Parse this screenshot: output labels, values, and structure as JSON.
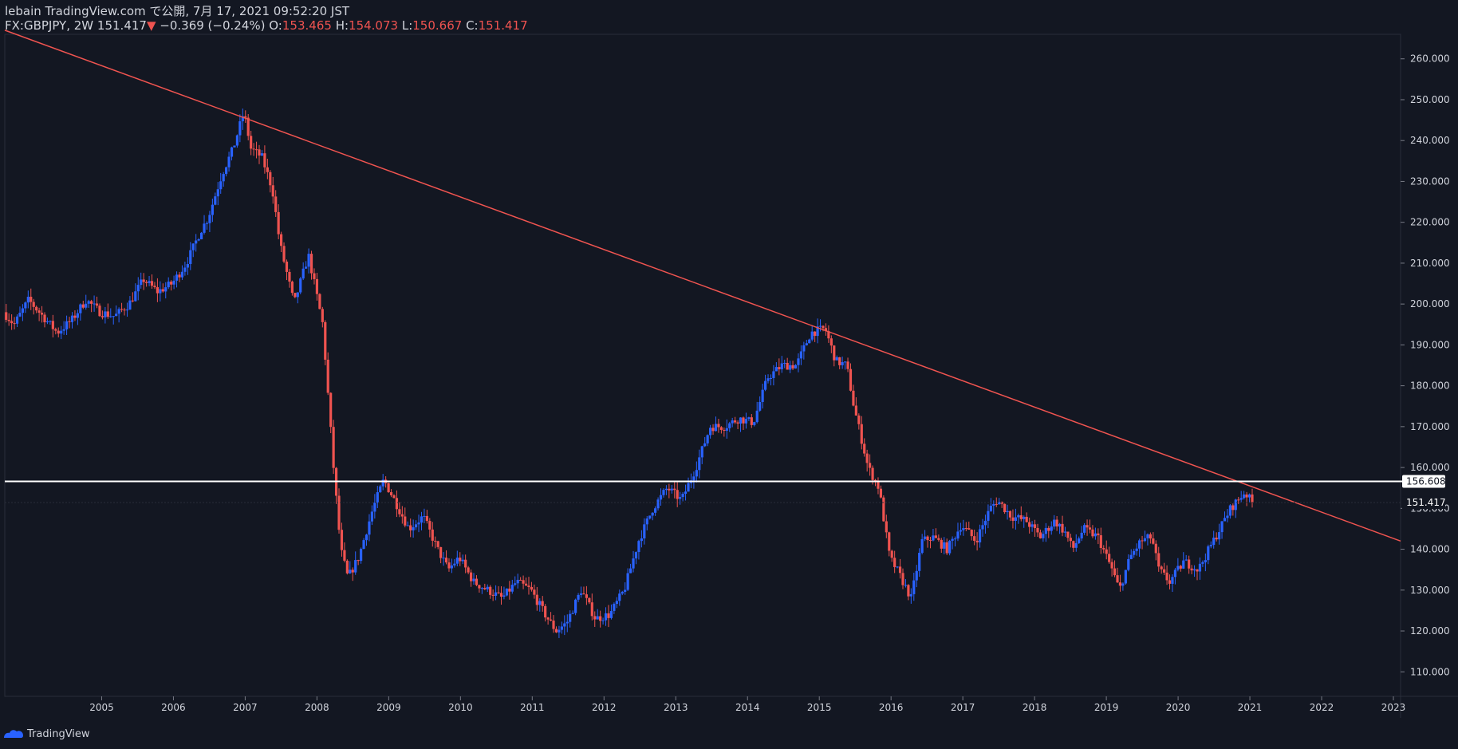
{
  "header": {
    "publish_line": "lebain TradingView.com で公開, 7月 17, 2021 09:52:20 JST",
    "symbol": "FX:GBPJPY, 2W",
    "last": "151.417",
    "change": "−0.369 (−0.24%)",
    "o_label": "O:",
    "o_value": "153.465",
    "h_label": "H:",
    "h_value": "154.073",
    "l_label": "L:",
    "l_value": "150.667",
    "c_label": "C:",
    "c_value": "151.417"
  },
  "footer": {
    "brand": "TradingView"
  },
  "colors": {
    "background": "#131722",
    "up": "#2962ff",
    "down": "#ef5350",
    "grid": "#2a2e39",
    "trendline": "#f05450",
    "hline": "#ffffff"
  },
  "chart_data": {
    "type": "candlestick",
    "x_tick_labels": [
      "2005",
      "2006",
      "2007",
      "2008",
      "2009",
      "2010",
      "2011",
      "2012",
      "2013",
      "2014",
      "2015",
      "2016",
      "2017",
      "2018",
      "2019",
      "2020",
      "2021",
      "2022",
      "2023"
    ],
    "y_tick_labels": [
      "110.000",
      "120.000",
      "130.000",
      "140.000",
      "150.000",
      "160.000",
      "170.000",
      "180.000",
      "190.000",
      "200.000",
      "210.000",
      "220.000",
      "230.000",
      "240.000",
      "250.000",
      "260.000"
    ],
    "ylim": [
      104,
      266
    ],
    "xlim": [
      2004.15,
      2023.6
    ],
    "grid": false,
    "current_price_label": "151.417",
    "current_price": 151.417,
    "horizontal_line": {
      "value": 156.608,
      "label": "156.608"
    },
    "trendline": {
      "x1": 2004.15,
      "y1": 267,
      "x2": 2023.6,
      "y2": 142
    },
    "price_path": [
      [
        2004.15,
        198
      ],
      [
        2004.3,
        195
      ],
      [
        2004.5,
        201
      ],
      [
        2004.7,
        197
      ],
      [
        2004.9,
        193
      ],
      [
        2005.1,
        196
      ],
      [
        2005.3,
        201
      ],
      [
        2005.5,
        198
      ],
      [
        2005.7,
        197
      ],
      [
        2005.9,
        200
      ],
      [
        2006.1,
        206
      ],
      [
        2006.3,
        203
      ],
      [
        2006.5,
        205
      ],
      [
        2006.7,
        210
      ],
      [
        2006.9,
        218
      ],
      [
        2007.0,
        221
      ],
      [
        2007.2,
        232
      ],
      [
        2007.35,
        238
      ],
      [
        2007.5,
        247
      ],
      [
        2007.6,
        238
      ],
      [
        2007.75,
        236
      ],
      [
        2007.9,
        228
      ],
      [
        2008.0,
        215
      ],
      [
        2008.2,
        200
      ],
      [
        2008.4,
        212
      ],
      [
        2008.6,
        195
      ],
      [
        2008.75,
        160
      ],
      [
        2008.85,
        140
      ],
      [
        2008.95,
        133
      ],
      [
        2009.1,
        138
      ],
      [
        2009.3,
        150
      ],
      [
        2009.45,
        157
      ],
      [
        2009.6,
        152
      ],
      [
        2009.8,
        145
      ],
      [
        2010.0,
        148
      ],
      [
        2010.2,
        140
      ],
      [
        2010.35,
        135
      ],
      [
        2010.5,
        138
      ],
      [
        2010.7,
        132
      ],
      [
        2010.9,
        130
      ],
      [
        2011.1,
        128
      ],
      [
        2011.3,
        132
      ],
      [
        2011.5,
        130
      ],
      [
        2011.7,
        124
      ],
      [
        2011.85,
        120
      ],
      [
        2012.0,
        122
      ],
      [
        2012.2,
        130
      ],
      [
        2012.4,
        123
      ],
      [
        2012.6,
        124
      ],
      [
        2012.8,
        130
      ],
      [
        2013.0,
        142
      ],
      [
        2013.2,
        150
      ],
      [
        2013.4,
        155
      ],
      [
        2013.6,
        152
      ],
      [
        2013.8,
        160
      ],
      [
        2014.0,
        170
      ],
      [
        2014.2,
        170
      ],
      [
        2014.4,
        172
      ],
      [
        2014.6,
        171
      ],
      [
        2014.8,
        182
      ],
      [
        2015.0,
        185
      ],
      [
        2015.2,
        185
      ],
      [
        2015.4,
        193
      ],
      [
        2015.6,
        194
      ],
      [
        2015.75,
        186
      ],
      [
        2015.9,
        185
      ],
      [
        2016.0,
        175
      ],
      [
        2016.2,
        160
      ],
      [
        2016.35,
        155
      ],
      [
        2016.5,
        138
      ],
      [
        2016.6,
        135
      ],
      [
        2016.8,
        128
      ],
      [
        2016.95,
        142
      ],
      [
        2017.1,
        143
      ],
      [
        2017.3,
        140
      ],
      [
        2017.5,
        146
      ],
      [
        2017.7,
        142
      ],
      [
        2017.9,
        150
      ],
      [
        2018.0,
        152
      ],
      [
        2018.2,
        148
      ],
      [
        2018.4,
        147
      ],
      [
        2018.6,
        143
      ],
      [
        2018.8,
        147
      ],
      [
        2018.95,
        144
      ],
      [
        2019.05,
        140
      ],
      [
        2019.2,
        145
      ],
      [
        2019.4,
        143
      ],
      [
        2019.6,
        135
      ],
      [
        2019.7,
        130
      ],
      [
        2019.85,
        138
      ],
      [
        2020.0,
        142
      ],
      [
        2020.15,
        143
      ],
      [
        2020.25,
        135
      ],
      [
        2020.4,
        132
      ],
      [
        2020.6,
        137
      ],
      [
        2020.8,
        135
      ],
      [
        2020.95,
        140
      ],
      [
        2021.1,
        145
      ],
      [
        2021.25,
        150
      ],
      [
        2021.35,
        152
      ],
      [
        2021.45,
        154
      ],
      [
        2021.55,
        151.4
      ]
    ]
  }
}
